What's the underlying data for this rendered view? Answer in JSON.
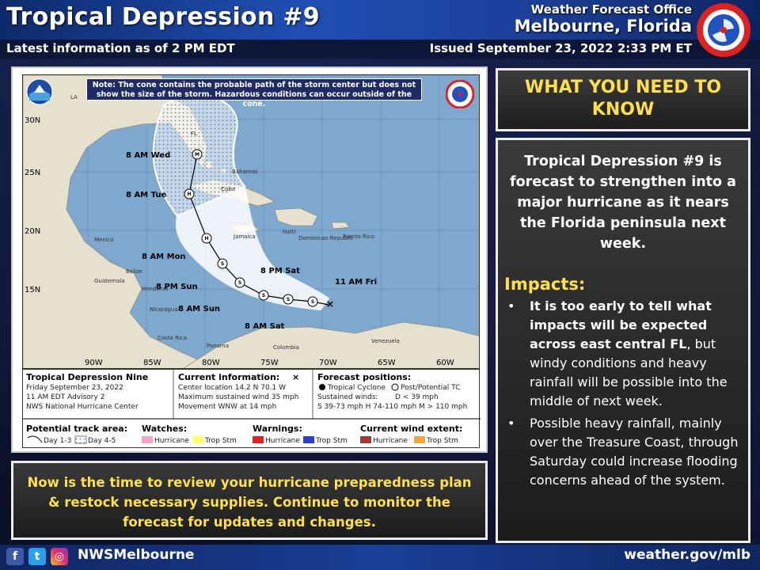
{
  "header": {
    "title": "Tropical Depression #9",
    "office_line1": "Weather Forecast Office",
    "office_line2": "Melbourne, Florida",
    "latest": "Latest information as of 2 PM EDT",
    "issued": "Issued September 23, 2022 2:33 PM ET"
  },
  "map": {
    "note": "Note: The cone contains the probable path of the storm center but does not show the size of the storm. Hazardous conditions can occur outside of the cone.",
    "lat_labels": [
      "30N",
      "25N",
      "20N",
      "15N"
    ],
    "lon_labels": [
      "90W",
      "85W",
      "80W",
      "75W",
      "70W",
      "65W",
      "60W"
    ],
    "place_labels": [
      "LA",
      "FL",
      "Bahamas",
      "Mexico",
      "Cuba",
      "Dominican Republic",
      "Jamaica",
      "Haiti",
      "Belize",
      "Guatemala",
      "Honduras",
      "Nicaragua",
      "Costa Rica",
      "Panama",
      "Venezuela",
      "Colombia",
      "Puerto Rico"
    ],
    "track_labels": {
      "wed": "8 AM Wed",
      "tue": "8 AM Tue",
      "mon": "8 AM Mon",
      "sun_pm": "8 PM Sun",
      "sun_am": "8 AM Sun",
      "sat_pm": "8 PM Sat",
      "sat_am": "8 AM Sat",
      "fri": "11 AM Fri"
    },
    "markers": {
      "m": "M",
      "h": "H",
      "s": "S"
    }
  },
  "legend": {
    "storm_name": "Tropical Depression Nine",
    "date": "Friday September 23, 2022",
    "advisory": "11 AM EDT Advisory 2",
    "center": "NWS National Hurricane Center",
    "current_title": "Current information:",
    "center_location": "Center location 14.2 N 70.1 W",
    "max_wind": "Maximum sustained wind 35 mph",
    "movement": "Movement WNW at 14 mph",
    "forecast_title": "Forecast positions:",
    "tropical_cyclone": "Tropical Cyclone",
    "post_tc": "Post/Potential TC",
    "sustained": "Sustained winds:",
    "d_less": "D < 39 mph",
    "winds_scale": "S 39-73 mph  H 74-110 mph  M > 110 mph",
    "track_area": "Potential track area:",
    "day13": "Day 1-3",
    "day45": "Day 4-5",
    "watches": "Watches:",
    "warnings": "Warnings:",
    "wind_extent": "Current wind extent:",
    "hurricane": "Hurricane",
    "trop_stm": "Trop Stm"
  },
  "right": {
    "need_title": "WHAT YOU NEED TO KNOW",
    "summary": "Tropical Depression #9 is forecast to strengthen into a major hurricane as it nears the Florida peninsula next week.",
    "impacts_title": "Impacts:",
    "bullet1_bold": "It is too early to tell what impacts will be expected across east central FL",
    "bullet1_rest": ", but windy conditions and heavy rainfall will be possible into the middle of next week.",
    "bullet2": "Possible heavy rainfall, mainly over the Treasure Coast, through Saturday could increase flooding concerns ahead of the system."
  },
  "callout": "Now is the time to review your hurricane preparedness plan & restock necessary supplies. Continue to monitor the forecast for updates and changes.",
  "footer": {
    "handle": "NWSMelbourne",
    "site": "weather.gov/mlb",
    "fb": "f",
    "tw": "t",
    "ig": "◎"
  },
  "colors": {
    "accent_yellow": "#ffe04a",
    "hurricane_watch": "#f4a3c8",
    "trop_storm_watch": "#ffff66",
    "hurricane_warning": "#e32226",
    "trop_storm_warning": "#2b3fd6",
    "hurricane_wind": "#a03a3a",
    "trop_storm_wind": "#f2a640"
  }
}
